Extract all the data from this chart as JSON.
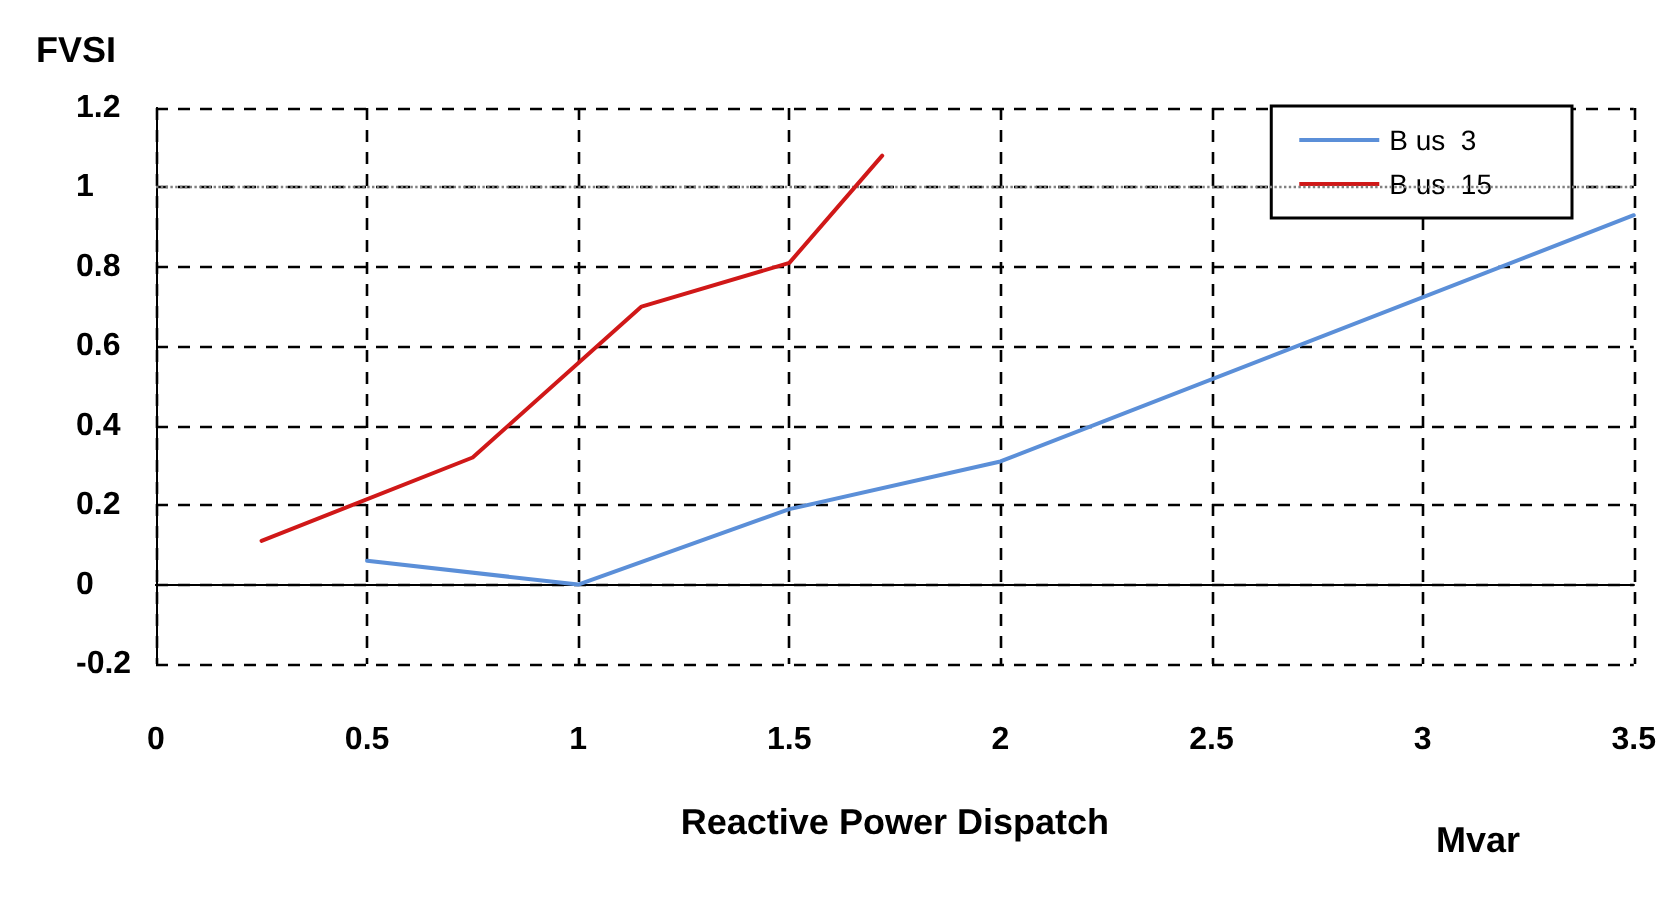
{
  "chart_data": {
    "type": "line",
    "ylabel": "FVSI",
    "xlabel": "Reactive Power Dispatch",
    "annotations": [
      "Mvar"
    ],
    "xlim": [
      0,
      3.5
    ],
    "xticks": [
      0,
      0.5,
      1,
      1.5,
      2,
      2.5,
      3,
      3.5
    ],
    "ylim": [
      -0.2,
      1.2
    ],
    "yticks": [
      -0.2,
      0,
      0.2,
      0.4,
      0.6,
      0.8,
      1,
      1.2
    ],
    "grid": true,
    "legend": "top right",
    "marker": "none",
    "line_style": "solid",
    "ref_lines": [
      {
        "axis": "y",
        "value": 1,
        "color": "#808080",
        "line_style": "dotted"
      }
    ],
    "series": [
      {
        "name": "B us  3",
        "color": "#5b8fd8",
        "x": [
          0.5,
          1,
          1.5,
          2,
          3.5
        ],
        "values": [
          0.06,
          0.0,
          0.19,
          0.31,
          0.93
        ]
      },
      {
        "name": "B us  15",
        "color": "#d01818",
        "x": [
          0.25,
          0.75,
          1.15,
          1.5,
          1.72
        ],
        "values": [
          0.11,
          0.32,
          0.7,
          0.81,
          1.08
        ]
      }
    ]
  }
}
